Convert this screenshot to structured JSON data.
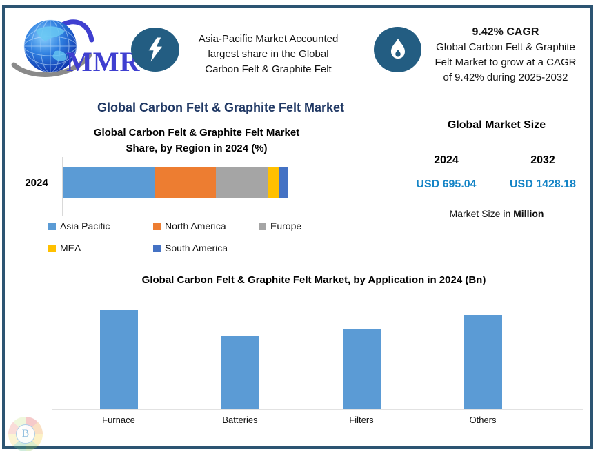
{
  "header": {
    "logo_text": "MMR",
    "highlight1": {
      "lines": [
        "Asia-Pacific Market Accounted",
        "largest share in the Global",
        "Carbon Felt & Graphite Felt"
      ]
    },
    "highlight2": {
      "title": "9.42% CAGR",
      "lines": [
        "Global Carbon Felt & Graphite",
        "Felt Market to grow at a CAGR",
        "of 9.42% during 2025-2032"
      ]
    }
  },
  "main_title": "Global Carbon Felt & Graphite Felt Market",
  "region_chart": {
    "title_lines": [
      "Global Carbon Felt & Graphite Felt Market",
      "Share, by Region in 2024 (%)"
    ],
    "category_label": "2024"
  },
  "market_size": {
    "title": "Global Market Size",
    "columns": [
      {
        "year": "2024",
        "value": "USD 695.04"
      },
      {
        "year": "2032",
        "value": "USD 1428.18"
      }
    ],
    "footer_regular": "Market Size in ",
    "footer_bold": "Million"
  },
  "app_chart": {
    "title": "Global Carbon Felt & Graphite Felt Market, by Application in 2024 (Bn)"
  },
  "watermark_letter": "B",
  "colors": {
    "border": "#2c5472",
    "icon_circle": "#235d82",
    "title_navy": "#203864",
    "usd_blue": "#1484c6",
    "bar_blue": "#5b9bd5"
  },
  "chart_data": [
    {
      "type": "bar",
      "orientation": "horizontal",
      "stacked": true,
      "title": "Global Carbon Felt & Graphite Felt Market Share, by Region in 2024 (%)",
      "categories": [
        "2024"
      ],
      "series": [
        {
          "name": "Asia Pacific",
          "color": "#5b9bd5",
          "values": [
            41
          ]
        },
        {
          "name": "North America",
          "color": "#ed7d31",
          "values": [
            27
          ]
        },
        {
          "name": "Europe",
          "color": "#a5a5a5",
          "values": [
            23
          ]
        },
        {
          "name": "MEA",
          "color": "#ffc000",
          "values": [
            5
          ]
        },
        {
          "name": "South America",
          "color": "#4472c4",
          "values": [
            4
          ]
        }
      ],
      "xlim": [
        0,
        100
      ],
      "grid": false,
      "legend_position": "bottom"
    },
    {
      "type": "bar",
      "title": "Global Carbon Felt & Graphite Felt Market, by Application in 2024 (Bn)",
      "categories": [
        "Furnace",
        "Batteries",
        "Filters",
        "Others"
      ],
      "values": [
        1.0,
        0.74,
        0.81,
        0.95
      ],
      "ylim": [
        0,
        1.05
      ],
      "grid": false,
      "note": "y-axis unlabeled; values are relative bar heights",
      "color": "#5b9bd5"
    }
  ]
}
